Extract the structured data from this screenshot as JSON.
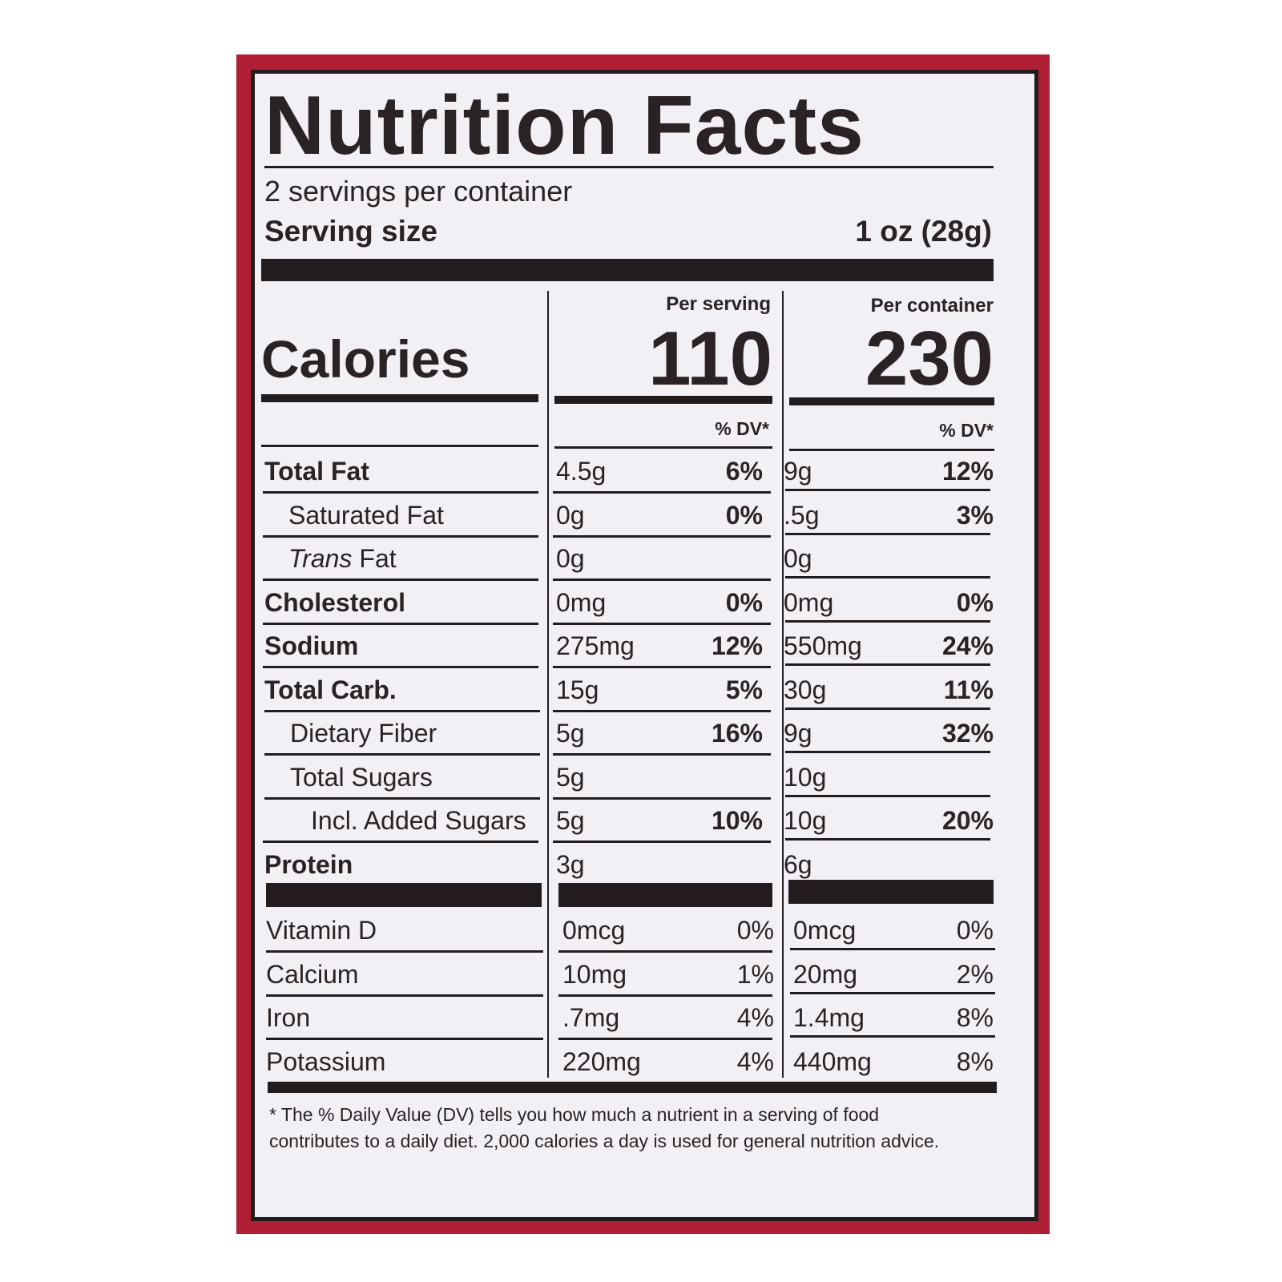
{
  "title": "Nutrition Facts",
  "servings": "2 servings per container",
  "serving_size": {
    "label": "Serving size",
    "value": "1 oz (28g)"
  },
  "calories": {
    "label": "Calories",
    "per_serving": {
      "header": "Per serving",
      "value": "110"
    },
    "per_container": {
      "header": "Per container",
      "value": "230"
    }
  },
  "dv_header": [
    "% DV*",
    "% DV*"
  ],
  "nutrients": [
    {
      "name": "Total Fat",
      "serving": [
        "4.5g",
        "6%"
      ],
      "container": [
        "9g",
        "12%"
      ]
    },
    {
      "name": "Saturated Fat",
      "serving": [
        "0g",
        "0%"
      ],
      "container": [
        ".5g",
        "3%"
      ]
    },
    {
      "name_italic": "Trans",
      "name": "Fat",
      "serving": [
        "0g"
      ],
      "container": [
        "0g"
      ]
    },
    {
      "name": "Cholesterol",
      "serving": [
        "0mg",
        "0%"
      ],
      "container": [
        "0mg",
        "0%"
      ]
    },
    {
      "name": "Sodium",
      "serving": [
        "275mg",
        "12%"
      ],
      "container": [
        "550mg",
        "24%"
      ]
    },
    {
      "name": "Total Carb.",
      "serving": [
        "15g",
        "5%"
      ],
      "container": [
        "30g",
        "11%"
      ]
    },
    {
      "name": "Dietary Fiber",
      "serving": [
        "5g",
        "16%"
      ],
      "container": [
        "9g",
        "32%"
      ]
    },
    {
      "name": "Total Sugars",
      "serving": [
        "5g"
      ],
      "container": [
        "10g"
      ]
    },
    {
      "name": "Incl. Added Sugars",
      "serving": [
        "5g",
        "10%"
      ],
      "container": [
        "10g",
        "20%"
      ]
    },
    {
      "name": "Protein",
      "serving": [
        "3g"
      ],
      "container": [
        "6g"
      ]
    }
  ],
  "vitamins": [
    {
      "name": "Vitamin D",
      "serving": [
        "0mcg",
        "0%"
      ],
      "container": [
        "0mcg",
        "0%"
      ]
    },
    {
      "name": "Calcium",
      "serving": [
        "10mg",
        "1%"
      ],
      "container": [
        "20mg",
        "2%"
      ]
    },
    {
      "name": "Iron",
      "serving": [
        ".7mg",
        "4%"
      ],
      "container": [
        "1.4mg",
        "8%"
      ]
    },
    {
      "name": "Potassium",
      "serving": [
        "220mg",
        "4%"
      ],
      "container": [
        "440mg",
        "8%"
      ]
    }
  ],
  "footnote": "* The % Daily Value (DV) tells you how much a nutrient in a serving of food contributes to a daily diet. 2,000 calories a day is used for general nutrition advice."
}
